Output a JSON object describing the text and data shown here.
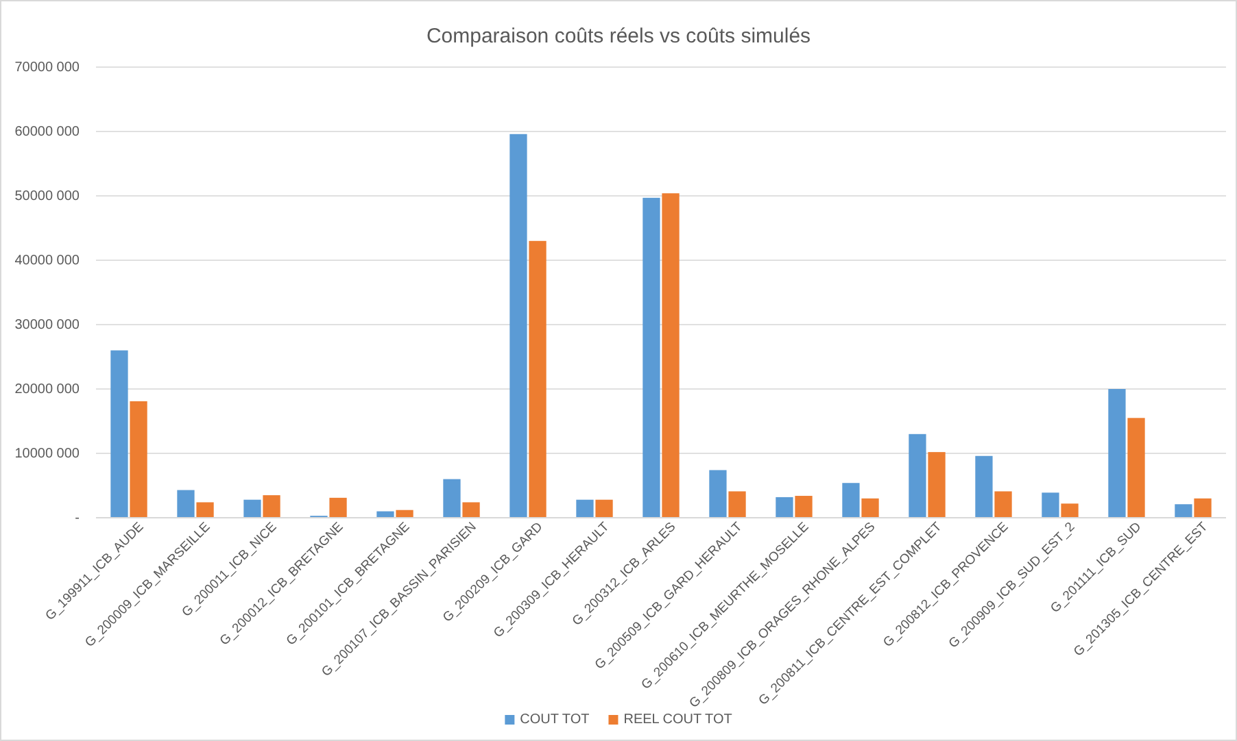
{
  "chart_data": {
    "type": "bar",
    "title": "Comparaison coûts réels vs coûts simulés",
    "categories": [
      "G_199911_ICB_AUDE",
      "G_200009_ICB_MARSEILLE",
      "G_200011_ICB_NICE",
      "G_200012_ICB_BRETAGNE",
      "G_200101_ICB_BRETAGNE",
      "G_200107_ICB_BASSIN_PARISIEN",
      "G_200209_ICB_GARD",
      "G_200309_ICB_HERAULT",
      "G_200312_ICB_ARLES",
      "G_200509_ICB_GARD_HERAULT",
      "G_200610_ICB_MEURTHE_MOSELLE",
      "G_200809_ICB_ORAGES_RHONE_ALPES",
      "G_200811_ICB_CENTRE_EST_COMPLET",
      "G_200812_ICB_PROVENCE",
      "G_200909_ICB_SUD_EST_2",
      "G_201111_ICB_SUD",
      "G_201305_ICB_CENTRE_EST"
    ],
    "series": [
      {
        "name": "COUT TOT",
        "color": "#5b9bd5",
        "values": [
          26000000,
          4300000,
          2800000,
          300000,
          1000000,
          6000000,
          59600000,
          2800000,
          49700000,
          7400000,
          3200000,
          5400000,
          13000000,
          9600000,
          3900000,
          20000000,
          2100000
        ]
      },
      {
        "name": "REEL COUT TOT",
        "color": "#ed7d31",
        "values": [
          18100000,
          2400000,
          3500000,
          3100000,
          1200000,
          2400000,
          43000000,
          2800000,
          50400000,
          4100000,
          3400000,
          3000000,
          10200000,
          4100000,
          2200000,
          15500000,
          3000000
        ]
      }
    ],
    "ylim": [
      0,
      70000000
    ],
    "yticks": [
      {
        "value": 0,
        "label": "-"
      },
      {
        "value": 10000000,
        "label": "10000 000"
      },
      {
        "value": 20000000,
        "label": "20000 000"
      },
      {
        "value": 30000000,
        "label": "30000 000"
      },
      {
        "value": 40000000,
        "label": "40000 000"
      },
      {
        "value": 50000000,
        "label": "50000 000"
      },
      {
        "value": 60000000,
        "label": "60000 000"
      },
      {
        "value": 70000000,
        "label": "70000 000"
      }
    ],
    "grid": "y",
    "legend": "bottom"
  }
}
